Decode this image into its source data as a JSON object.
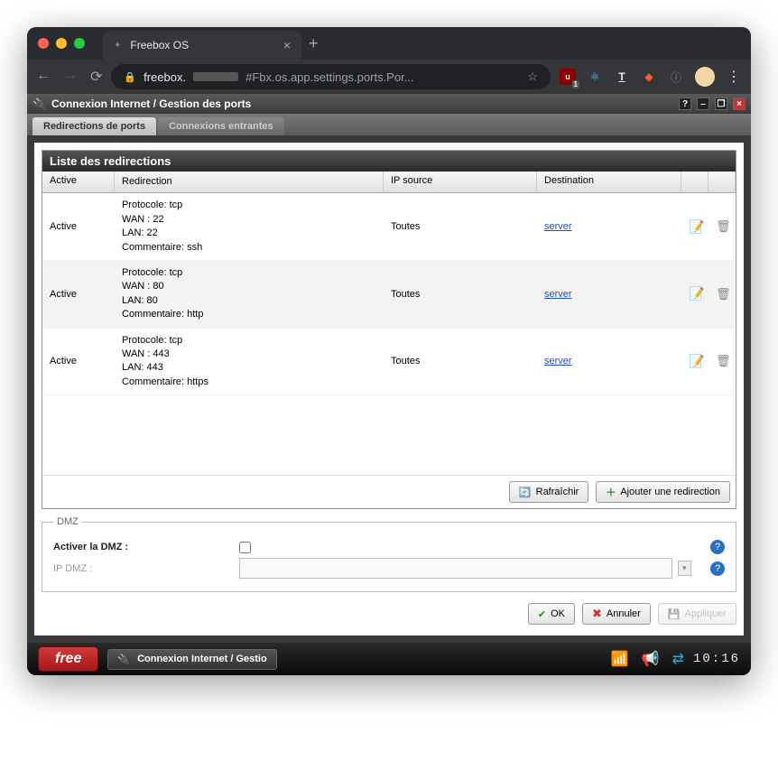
{
  "browser": {
    "tab_title": "Freebox OS",
    "url_host": "freebox.",
    "url_rest": "#Fbx.os.app.settings.ports.Por...",
    "ublock_badge": "1"
  },
  "window": {
    "title": "Connexion Internet / Gestion des ports"
  },
  "tabs": {
    "active": "Redirections de ports",
    "inactive": "Connexions entrantes"
  },
  "panel": {
    "title": "Liste des redirections",
    "columns": {
      "active": "Active",
      "redirection": "Redirection",
      "ipsource": "IP source",
      "destination": "Destination"
    },
    "rows": [
      {
        "active": "Active",
        "proto": "Protocole: tcp",
        "wan": "WAN : 22",
        "lan": "LAN: 22",
        "comment": "Commentaire: ssh",
        "ip": "Toutes",
        "dest": "server"
      },
      {
        "active": "Active",
        "proto": "Protocole: tcp",
        "wan": "WAN : 80",
        "lan": "LAN: 80",
        "comment": "Commentaire: http",
        "ip": "Toutes",
        "dest": "server"
      },
      {
        "active": "Active",
        "proto": "Protocole: tcp",
        "wan": "WAN : 443",
        "lan": "LAN: 443",
        "comment": "Commentaire: https",
        "ip": "Toutes",
        "dest": "server"
      }
    ],
    "refresh": "Rafraîchir",
    "add": "Ajouter une redirection"
  },
  "dmz": {
    "legend": "DMZ",
    "enable_label": "Activer la DMZ :",
    "ip_label": "IP DMZ :",
    "ip_value": ""
  },
  "buttons": {
    "ok": "OK",
    "cancel": "Annuler",
    "apply": "Appliquer"
  },
  "taskbar": {
    "free": "free",
    "task": "Connexion Internet / Gestio",
    "clock": "10:16"
  }
}
